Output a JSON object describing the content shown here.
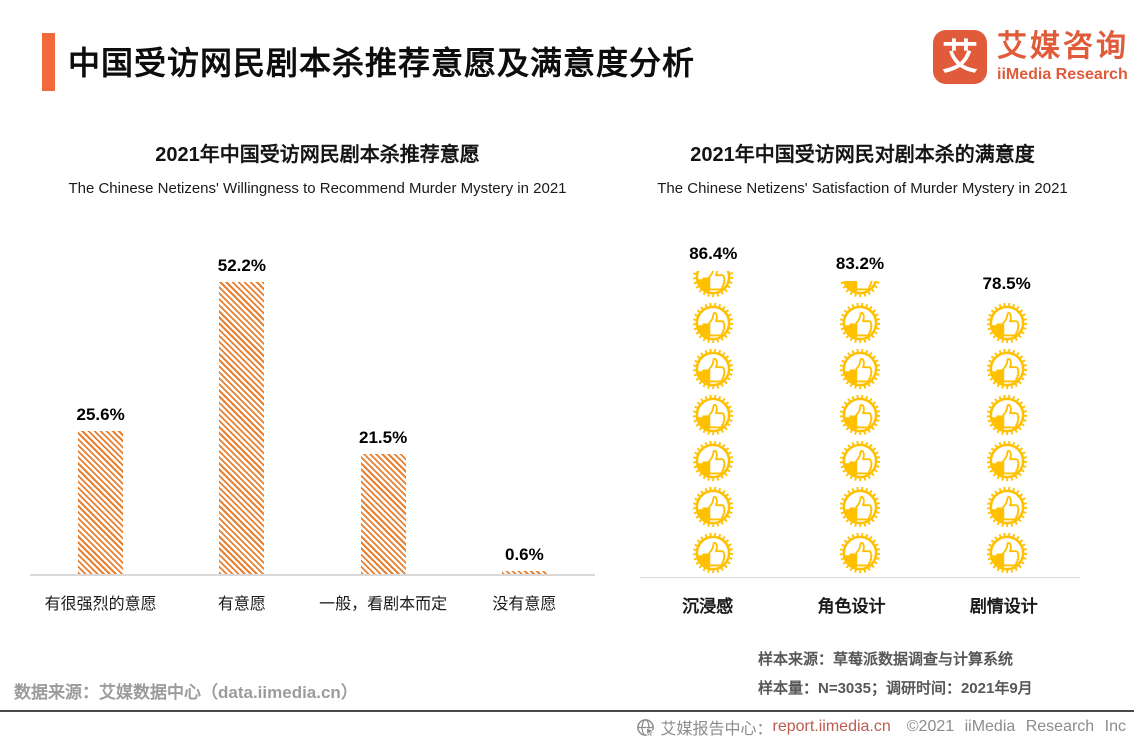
{
  "header": {
    "title": "中国受访网民剧本杀推荐意愿及满意度分析",
    "logo": {
      "glyph": "艾",
      "name_cn": "艾媒咨询",
      "name_en": "iiMedia Research"
    }
  },
  "colors": {
    "accent_bar": "#F2693B",
    "brand_orange": "#E05B3A",
    "bar_hatch_orange": "#E8802F",
    "thumb_gold": "#FFC000",
    "axis_gray": "#D9D9D9",
    "footer_url_red": "#BA5B50"
  },
  "chart_data": [
    {
      "type": "bar",
      "title": "2021年中国受访网民剧本杀推荐意愿",
      "subtitle": "The Chinese Netizens' Willingness to Recommend Murder Mystery in 2021",
      "categories": [
        "有很强烈的意愿",
        "有意愿",
        "一般，看剧本而定",
        "没有意愿"
      ],
      "values": [
        25.6,
        52.2,
        21.5,
        0.6
      ],
      "data_labels": [
        "25.6%",
        "52.2%",
        "21.5%",
        "0.6%"
      ],
      "unit": "%",
      "ylim": [
        0,
        55
      ],
      "grid": false,
      "bar_style": "diagonal-hatch",
      "bar_color": "#E8802F"
    },
    {
      "type": "bar",
      "subtype": "pictograph-thumbs-up",
      "title": "2021年中国受访网民对剧本杀的满意度",
      "subtitle": "The Chinese Netizens' Satisfaction of Murder Mystery in 2021",
      "categories": [
        "沉浸感",
        "角色设计",
        "剧情设计"
      ],
      "values": [
        86.4,
        83.2,
        78.5
      ],
      "data_labels": [
        "86.4%",
        "83.2%",
        "78.5%"
      ],
      "unit": "%",
      "grid": false,
      "icon": "thumbs-up-badge",
      "icon_color": "#FFC000",
      "icon_unit_percent": 13
    }
  ],
  "footnotes": {
    "data_source": "数据来源：艾媒数据中心（data.iimedia.cn）",
    "sample_source": "样本来源：草莓派数据调查与计算系统",
    "sample_info": "样本量：N=3035；调研时间：2021年9月"
  },
  "footer": {
    "site_label": "艾媒报告中心：",
    "site_url": "report.iimedia.cn",
    "copyright": "©2021 iiMedia Research Inc"
  }
}
